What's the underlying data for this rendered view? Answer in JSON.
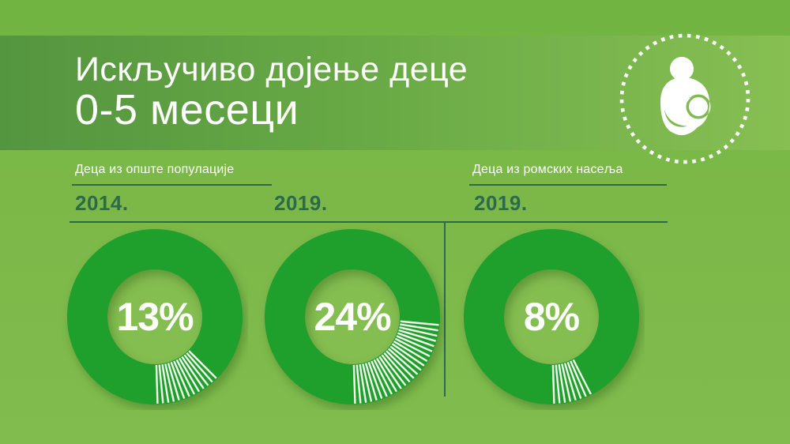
{
  "header": {
    "title_line1": "Искључиво дојење деце",
    "title_line2": "0-5 месеци",
    "icon": "breastfeeding-mother-and-baby-icon"
  },
  "groups": [
    {
      "label": "Деца из опште популације"
    },
    {
      "label": "Деца из ромских насеља"
    }
  ],
  "chart_data": {
    "type": "pie",
    "subtype": "donut-set",
    "title": "Искључиво дојење деце 0-5 месеци",
    "unit": "percent",
    "donuts": [
      {
        "group": "Деца из опште популације",
        "year": "2014.",
        "value": 13,
        "label": "13%"
      },
      {
        "group": "Деца из опште популације",
        "year": "2019.",
        "value": 24,
        "label": "24%"
      },
      {
        "group": "Деца из ромских насеља",
        "year": "2019.",
        "value": 8,
        "label": "8%"
      }
    ],
    "style_notes": "dark green donut ring; highlighted slice drawn as white radial stripes (one per percentage point), slice starts at 6 o'clock sweeping toward 3 o'clock"
  },
  "colors": {
    "background": "#7bb848",
    "band_gradient_left": "#549540",
    "band_gradient_right": "#87bf53",
    "ring_green": "#1f9f2c",
    "ring_hole": "#84bd50",
    "dark_line_text": "#2d6a4c",
    "stripe_white": "#f4f9ee",
    "text_white": "#ffffff"
  }
}
